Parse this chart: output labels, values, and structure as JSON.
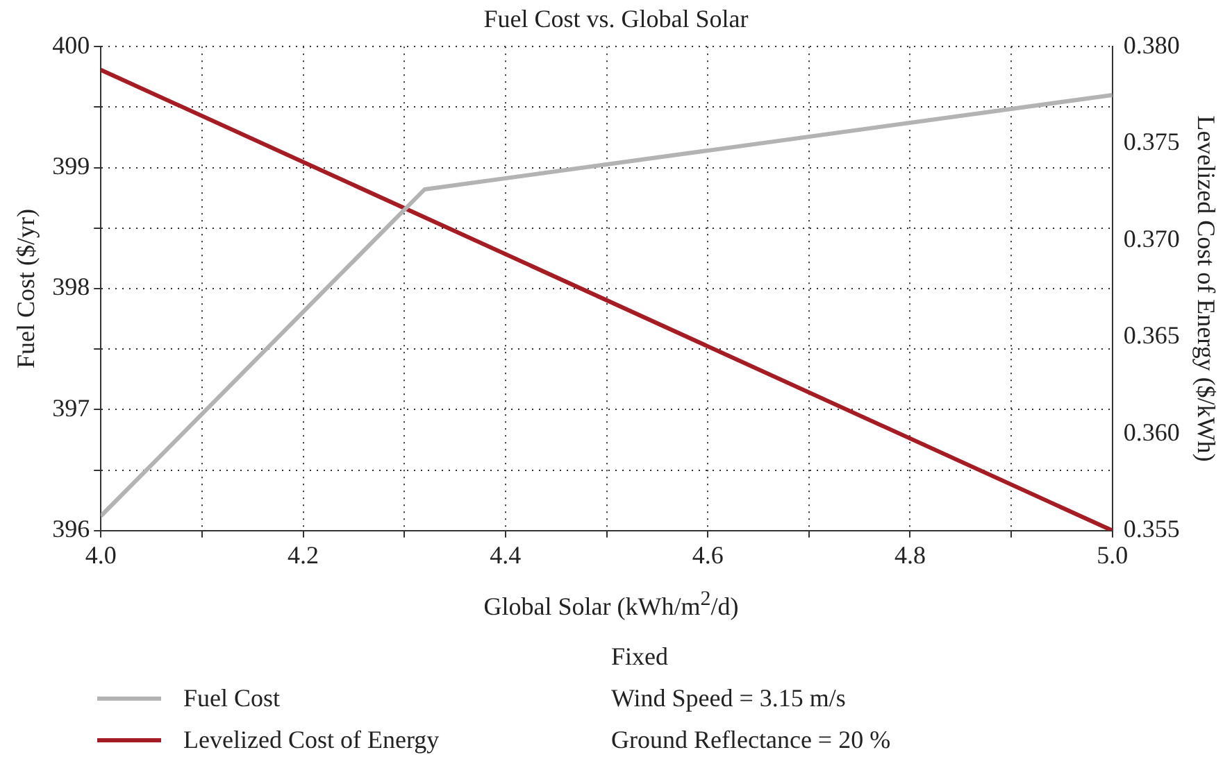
{
  "chart_data": {
    "type": "line",
    "title": "Fuel Cost vs. Global Solar",
    "xlabel": "Global Solar (kWh/m$^{2}$/d)",
    "ylabel": "Fuel Cost ($/yr)",
    "y2label": "Levelized Cost of Energy ($/kWh)",
    "xlim": [
      4,
      5
    ],
    "xticks": [
      {
        "value": 4,
        "label": "4.0"
      },
      {
        "value": 4.1,
        "label": null
      },
      4.2,
      {
        "value": 4.3,
        "label": null
      },
      4.4,
      {
        "value": 4.5,
        "label": null
      },
      4.6,
      {
        "value": 4.7,
        "label": null
      },
      4.8,
      {
        "value": 4.9,
        "label": null
      },
      {
        "value": 5,
        "label": "5.0"
      }
    ],
    "ylim": [
      396,
      400
    ],
    "yticks": [
      396,
      {
        "value": 396.5,
        "label": null
      },
      397,
      {
        "value": 397.5,
        "label": null
      },
      398,
      {
        "value": 398.5,
        "label": null
      },
      399,
      {
        "value": 399.5,
        "label": null
      },
      400
    ],
    "y2lim": [
      0.355,
      0.38
    ],
    "y2ticks": [
      0.355,
      {
        "value": 0.36,
        "label": "0.360"
      },
      0.365,
      {
        "value": 0.37,
        "label": "0.370"
      },
      0.375,
      {
        "value": 0.38,
        "label": "0.380"
      }
    ],
    "series": [
      {
        "name": "Fuel Cost",
        "color": "#b3b3b3",
        "x": [
          4,
          4.32,
          5
        ],
        "values": [
          396.12,
          398.82,
          399.6
        ]
      },
      {
        "name": "Levelized Cost of Energy",
        "color": "#a51c24",
        "axis": "y2",
        "x": [
          4,
          5
        ],
        "values": [
          0.3788,
          0.355
        ]
      }
    ],
    "grid": true,
    "line_style": "solid",
    "marker": "none",
    "legend": "bottom",
    "annotations": [
      "Fixed",
      "Wind Speed = 3.15 m/s",
      "Ground Reflectance = 20 %"
    ]
  }
}
